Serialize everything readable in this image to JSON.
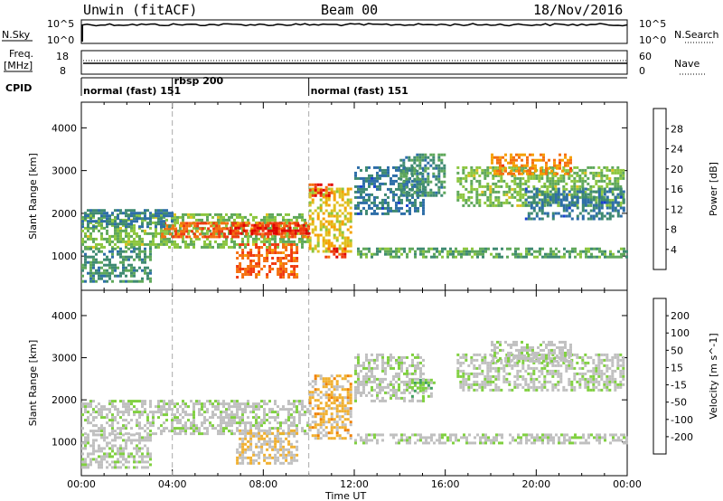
{
  "header": {
    "station": "Unwin (fitACF)",
    "beam": "Beam 00",
    "date": "18/Nov/2016"
  },
  "top_panels": {
    "nsky": {
      "label": "N.Sky",
      "ticks": [
        "10^5",
        "10^0"
      ],
      "right_label": "N.Search",
      "right_ticks": [
        "10^5",
        "10^0"
      ]
    },
    "freq": {
      "label_lines": [
        "Freq.",
        "[MHz]"
      ],
      "ticks": [
        "18",
        "8"
      ],
      "right_label": "Nave",
      "right_ticks": [
        "60",
        "0"
      ]
    },
    "cpid": {
      "label": "CPID",
      "segments": [
        {
          "name": "normal (fast)",
          "id": "151",
          "start_hour": 0
        },
        {
          "name": "rbsp",
          "id": "200",
          "start_hour": 4
        },
        {
          "name": "normal (fast)",
          "id": "151",
          "start_hour": 10
        }
      ]
    }
  },
  "colors": {
    "power": [
      "#0000ff",
      "#1a3fd0",
      "#2e6ea8",
      "#3f8a72",
      "#5fa85a",
      "#8cc63f",
      "#e0c020",
      "#f5a000",
      "#f57010",
      "#f03a10",
      "#e00000"
    ],
    "velocity": [
      "#ee0000",
      "#f04000",
      "#f08000",
      "#f0b030",
      "#c0c0c0",
      "#c0c0c0",
      "#80d040",
      "#40a060",
      "#1c6b4a",
      "#1030a0",
      "#0000cc"
    ]
  },
  "chart_data": [
    {
      "type": "heatmap",
      "title": "Power",
      "xlabel": "Time UT",
      "ylabel": "Slant Range [km]",
      "x_ticks": [
        "00:00",
        "04:00",
        "08:00",
        "12:00",
        "16:00",
        "20:00",
        "00:00"
      ],
      "xlim_hours": [
        0,
        24
      ],
      "ylim_km": [
        200,
        4600
      ],
      "y_ticks": [
        1000,
        2000,
        3000,
        4000
      ],
      "colorbar": {
        "label": "Power [dB]",
        "ticks": [
          "28",
          "24",
          "20",
          "16",
          "12",
          "8",
          "4"
        ],
        "range": [
          0,
          30
        ]
      },
      "regions": [
        {
          "t": [
            0.0,
            10.0
          ],
          "r": [
            1200,
            2000
          ],
          "v": 14
        },
        {
          "t": [
            3.5,
            10.0
          ],
          "r": [
            1450,
            1800
          ],
          "v": 24
        },
        {
          "t": [
            6.5,
            10.0
          ],
          "r": [
            1500,
            1750
          ],
          "v": 27
        },
        {
          "t": [
            6.8,
            9.5
          ],
          "r": [
            500,
            1300
          ],
          "v": 24
        },
        {
          "t": [
            0.0,
            3.0
          ],
          "r": [
            400,
            1200
          ],
          "v": 10
        },
        {
          "t": [
            0.0,
            4.0
          ],
          "r": [
            1700,
            2100
          ],
          "v": 8
        },
        {
          "t": [
            10.0,
            11.8
          ],
          "r": [
            1100,
            2600
          ],
          "v": 18
        },
        {
          "t": [
            10.0,
            11.0
          ],
          "r": [
            2400,
            2700
          ],
          "v": 26
        },
        {
          "t": [
            10.7,
            11.6
          ],
          "r": [
            1000,
            1200
          ],
          "v": 26
        },
        {
          "t": [
            12.0,
            15.0
          ],
          "r": [
            2000,
            3100
          ],
          "v": 8
        },
        {
          "t": [
            14.0,
            16.0
          ],
          "r": [
            2400,
            3400
          ],
          "v": 10
        },
        {
          "t": [
            16.5,
            23.8
          ],
          "r": [
            2200,
            3100
          ],
          "v": 14
        },
        {
          "t": [
            18.0,
            21.5
          ],
          "r": [
            2900,
            3400
          ],
          "v": 22
        },
        {
          "t": [
            19.5,
            23.8
          ],
          "r": [
            1900,
            2600
          ],
          "v": 8
        },
        {
          "t": [
            12.0,
            24.0
          ],
          "r": [
            1000,
            1200
          ],
          "v": 12
        }
      ]
    },
    {
      "type": "heatmap",
      "title": "Velocity",
      "xlabel": "Time UT",
      "ylabel": "Slant Range [km]",
      "x_ticks": [
        "00:00",
        "04:00",
        "08:00",
        "12:00",
        "16:00",
        "20:00",
        "00:00"
      ],
      "xlim_hours": [
        0,
        24
      ],
      "ylim_km": [
        200,
        4600
      ],
      "y_ticks": [
        1000,
        2000,
        3000,
        4000
      ],
      "colorbar": {
        "label": "Velocity [m s^-1]",
        "ticks": [
          "200",
          "100",
          "50",
          "15",
          "-15",
          "-50",
          "-100",
          "-200"
        ],
        "range": [
          -250,
          250
        ]
      },
      "regions": [
        {
          "t": [
            0.0,
            10.0
          ],
          "r": [
            1200,
            2000
          ],
          "v": 0
        },
        {
          "t": [
            6.8,
            9.5
          ],
          "r": [
            500,
            1300
          ],
          "v": -60
        },
        {
          "t": [
            0.0,
            3.0
          ],
          "r": [
            400,
            1200
          ],
          "v": 0
        },
        {
          "t": [
            10.0,
            11.8
          ],
          "r": [
            1100,
            2600
          ],
          "v": -80
        },
        {
          "t": [
            12.0,
            15.0
          ],
          "r": [
            2000,
            3100
          ],
          "v": 0
        },
        {
          "t": [
            14.5,
            15.5
          ],
          "r": [
            2100,
            2500
          ],
          "v": 40
        },
        {
          "t": [
            16.5,
            23.8
          ],
          "r": [
            2200,
            3100
          ],
          "v": 0
        },
        {
          "t": [
            18.0,
            21.5
          ],
          "r": [
            2900,
            3400
          ],
          "v": 0
        },
        {
          "t": [
            12.0,
            24.0
          ],
          "r": [
            1000,
            1200
          ],
          "v": 0
        }
      ]
    }
  ]
}
